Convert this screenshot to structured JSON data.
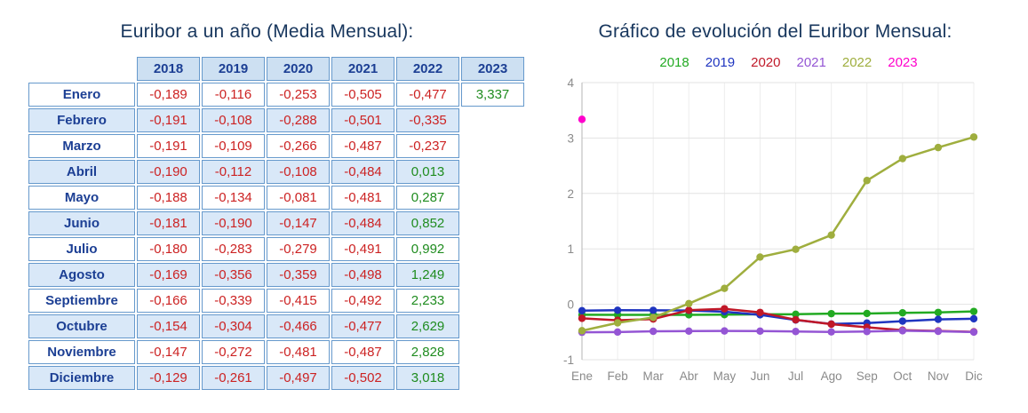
{
  "left": {
    "title": "Euribor a un año (Media Mensual):",
    "table": {
      "year_headers": [
        "2018",
        "2019",
        "2020",
        "2021",
        "2022",
        "2023"
      ],
      "rows": [
        {
          "month": "Enero",
          "values": [
            "-0,189",
            "-0,116",
            "-0,253",
            "-0,505",
            "-0,477",
            "3,337"
          ]
        },
        {
          "month": "Febrero",
          "values": [
            "-0,191",
            "-0,108",
            "-0,288",
            "-0,501",
            "-0,335",
            ""
          ]
        },
        {
          "month": "Marzo",
          "values": [
            "-0,191",
            "-0,109",
            "-0,266",
            "-0,487",
            "-0,237",
            ""
          ]
        },
        {
          "month": "Abril",
          "values": [
            "-0,190",
            "-0,112",
            "-0,108",
            "-0,484",
            "0,013",
            ""
          ]
        },
        {
          "month": "Mayo",
          "values": [
            "-0,188",
            "-0,134",
            "-0,081",
            "-0,481",
            "0,287",
            ""
          ]
        },
        {
          "month": "Junio",
          "values": [
            "-0,181",
            "-0,190",
            "-0,147",
            "-0,484",
            "0,852",
            ""
          ]
        },
        {
          "month": "Julio",
          "values": [
            "-0,180",
            "-0,283",
            "-0,279",
            "-0,491",
            "0,992",
            ""
          ]
        },
        {
          "month": "Agosto",
          "values": [
            "-0,169",
            "-0,356",
            "-0,359",
            "-0,498",
            "1,249",
            ""
          ]
        },
        {
          "month": "Septiembre",
          "values": [
            "-0,166",
            "-0,339",
            "-0,415",
            "-0,492",
            "2,233",
            ""
          ]
        },
        {
          "month": "Octubre",
          "values": [
            "-0,154",
            "-0,304",
            "-0,466",
            "-0,477",
            "2,629",
            ""
          ]
        },
        {
          "month": "Noviembre",
          "values": [
            "-0,147",
            "-0,272",
            "-0,481",
            "-0,487",
            "2,828",
            ""
          ]
        },
        {
          "month": "Diciembre",
          "values": [
            "-0,129",
            "-0,261",
            "-0,497",
            "-0,502",
            "3,018",
            ""
          ]
        }
      ]
    }
  },
  "right": {
    "title": "Gráfico de evolución del Euribor Mensual:"
  },
  "colors": {
    "negative": "#cc2222",
    "positive": "#1f8c1f",
    "table_border": "#6699cc",
    "header_bg": "#cde0f2",
    "navy_text": "#1c3f94"
  },
  "chart_data": {
    "type": "line",
    "title": "Gráfico de evolución del Euribor Mensual:",
    "x": [
      "Ene",
      "Feb",
      "Mar",
      "Abr",
      "May",
      "Jun",
      "Jul",
      "Ago",
      "Sep",
      "Oct",
      "Nov",
      "Dic"
    ],
    "series": [
      {
        "name": "2018",
        "color": "#22aa22",
        "values": [
          -0.189,
          -0.191,
          -0.191,
          -0.19,
          -0.188,
          -0.181,
          -0.18,
          -0.169,
          -0.166,
          -0.154,
          -0.147,
          -0.129
        ]
      },
      {
        "name": "2019",
        "color": "#1f35c0",
        "values": [
          -0.116,
          -0.108,
          -0.109,
          -0.112,
          -0.134,
          -0.19,
          -0.283,
          -0.356,
          -0.339,
          -0.304,
          -0.272,
          -0.261
        ]
      },
      {
        "name": "2020",
        "color": "#c01828",
        "values": [
          -0.253,
          -0.288,
          -0.266,
          -0.108,
          -0.081,
          -0.147,
          -0.279,
          -0.359,
          -0.415,
          -0.466,
          -0.481,
          -0.497
        ]
      },
      {
        "name": "2021",
        "color": "#9455d4",
        "values": [
          -0.505,
          -0.501,
          -0.487,
          -0.484,
          -0.481,
          -0.484,
          -0.491,
          -0.498,
          -0.492,
          -0.477,
          -0.487,
          -0.502
        ]
      },
      {
        "name": "2022",
        "color": "#9fae3e",
        "values": [
          -0.477,
          -0.335,
          -0.237,
          0.013,
          0.287,
          0.852,
          0.992,
          1.249,
          2.233,
          2.629,
          2.828,
          3.018
        ]
      },
      {
        "name": "2023",
        "color": "#ff00cc",
        "values": [
          3.337,
          null,
          null,
          null,
          null,
          null,
          null,
          null,
          null,
          null,
          null,
          null
        ]
      }
    ],
    "ylim": [
      -1,
      4
    ],
    "yticks": [
      4,
      3,
      2,
      1,
      0,
      -1
    ],
    "grid": true,
    "legend_position": "top"
  }
}
